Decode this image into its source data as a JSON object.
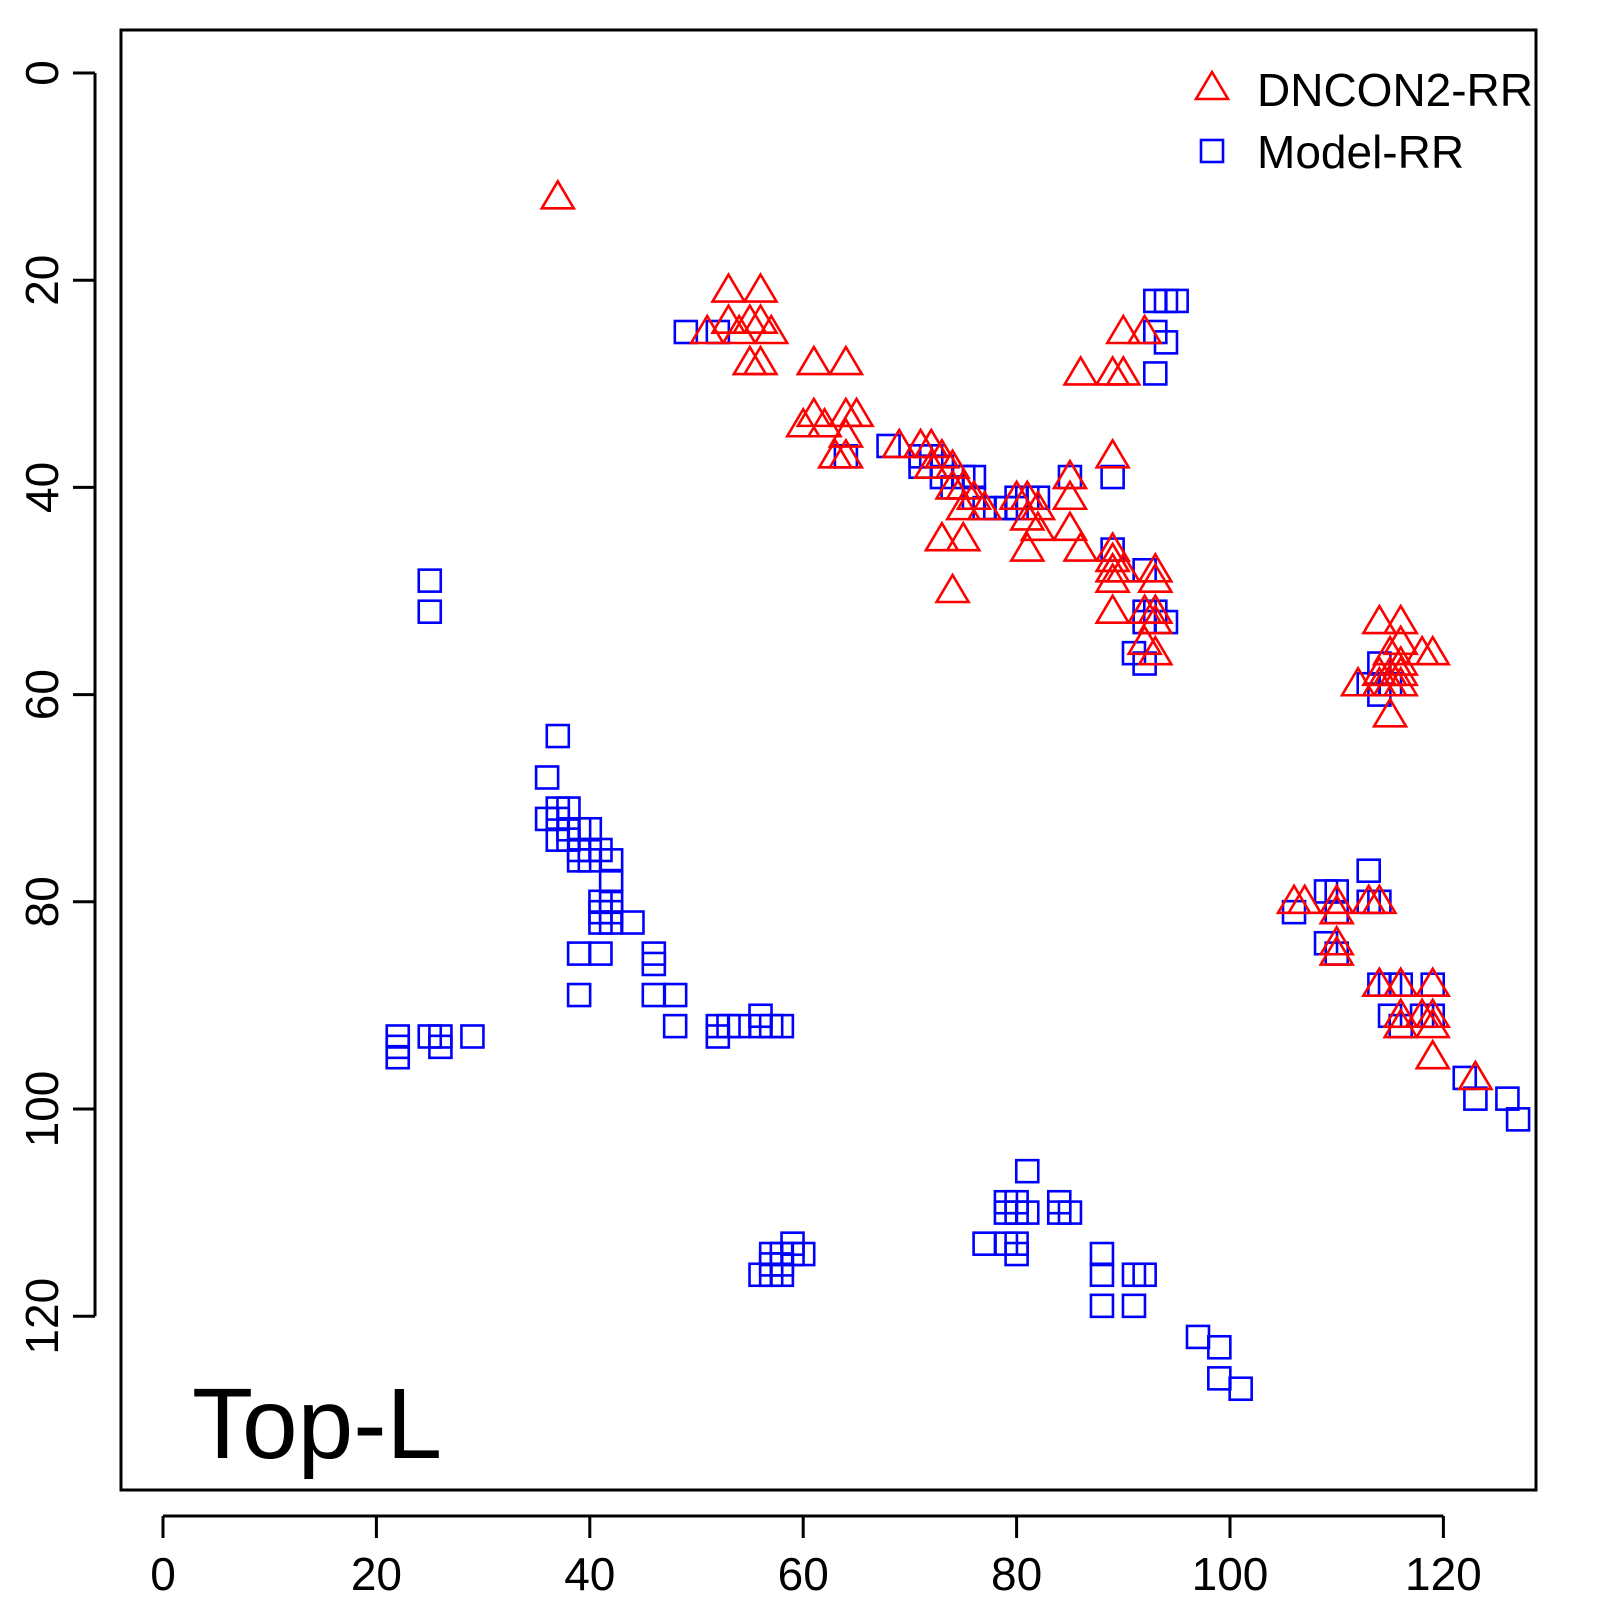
{
  "chart_data": {
    "type": "scatter",
    "annotation": "Top-L",
    "xlim": [
      -10,
      133
    ],
    "ylim": [
      -4,
      133
    ],
    "y_reversed": true,
    "xticks": [
      "0",
      "20",
      "40",
      "60",
      "80",
      "100",
      "120"
    ],
    "yticks": [
      "0",
      "20",
      "40",
      "60",
      "80",
      "100",
      "120"
    ],
    "legend_position": "top-right",
    "grid": false,
    "series": [
      {
        "name": "DNCON2-RR",
        "marker": "triangle",
        "color": "#ff0000",
        "points": [
          [
            37,
            12
          ],
          [
            53,
            21
          ],
          [
            56,
            21
          ],
          [
            51,
            25
          ],
          [
            53,
            24
          ],
          [
            55,
            24
          ],
          [
            56,
            24
          ],
          [
            57,
            25
          ],
          [
            54,
            25
          ],
          [
            55,
            28
          ],
          [
            56,
            28
          ],
          [
            61,
            28
          ],
          [
            64,
            28
          ],
          [
            60,
            34
          ],
          [
            61,
            33
          ],
          [
            62,
            34
          ],
          [
            64,
            33
          ],
          [
            65,
            33
          ],
          [
            64,
            35
          ],
          [
            63,
            37
          ],
          [
            64,
            37
          ],
          [
            69,
            36
          ],
          [
            71,
            36
          ],
          [
            72,
            36
          ],
          [
            73,
            37
          ],
          [
            72,
            38
          ],
          [
            74,
            38
          ],
          [
            74,
            40
          ],
          [
            75,
            40
          ],
          [
            76,
            41
          ],
          [
            75,
            42
          ],
          [
            77,
            42
          ],
          [
            73,
            45
          ],
          [
            75,
            45
          ],
          [
            74,
            50
          ],
          [
            80,
            41
          ],
          [
            81,
            41
          ],
          [
            82,
            42
          ],
          [
            81,
            43
          ],
          [
            82,
            44
          ],
          [
            81,
            46
          ],
          [
            85,
            39
          ],
          [
            85,
            41
          ],
          [
            85,
            44
          ],
          [
            86,
            46
          ],
          [
            86,
            29
          ],
          [
            89,
            29
          ],
          [
            90,
            29
          ],
          [
            90,
            25
          ],
          [
            92,
            25
          ],
          [
            89,
            37
          ],
          [
            89,
            46
          ],
          [
            89,
            47
          ],
          [
            89,
            48
          ],
          [
            90,
            48
          ],
          [
            89,
            49
          ],
          [
            89,
            52
          ],
          [
            93,
            48
          ],
          [
            93,
            49
          ],
          [
            92,
            52
          ],
          [
            93,
            52
          ],
          [
            93,
            53
          ],
          [
            92,
            55
          ],
          [
            93,
            56
          ],
          [
            114,
            53
          ],
          [
            116,
            53
          ],
          [
            116,
            55
          ],
          [
            118,
            56
          ],
          [
            119,
            56
          ],
          [
            115,
            56
          ],
          [
            116,
            57
          ],
          [
            114,
            58
          ],
          [
            115,
            58
          ],
          [
            116,
            58
          ],
          [
            112,
            59
          ],
          [
            114,
            59
          ],
          [
            115,
            59
          ],
          [
            116,
            59
          ],
          [
            115,
            62
          ],
          [
            106,
            80
          ],
          [
            107,
            80
          ],
          [
            110,
            80
          ],
          [
            110,
            81
          ],
          [
            113,
            80
          ],
          [
            114,
            80
          ],
          [
            110,
            84
          ],
          [
            110,
            85
          ],
          [
            114,
            88
          ],
          [
            116,
            88
          ],
          [
            119,
            88
          ],
          [
            116,
            91
          ],
          [
            116,
            92
          ],
          [
            118,
            91
          ],
          [
            119,
            91
          ],
          [
            119,
            92
          ],
          [
            119,
            95
          ],
          [
            123,
            97
          ]
        ]
      },
      {
        "name": "Model-RR",
        "marker": "square",
        "color": "#0000ff",
        "points": [
          [
            49,
            25
          ],
          [
            52,
            25
          ],
          [
            93,
            22
          ],
          [
            94,
            22
          ],
          [
            95,
            22
          ],
          [
            93,
            25
          ],
          [
            94,
            26
          ],
          [
            93,
            29
          ],
          [
            64,
            37
          ],
          [
            68,
            36
          ],
          [
            71,
            37
          ],
          [
            71,
            38
          ],
          [
            72,
            37
          ],
          [
            73,
            38
          ],
          [
            73,
            39
          ],
          [
            74,
            40
          ],
          [
            75,
            39
          ],
          [
            76,
            39
          ],
          [
            76,
            41
          ],
          [
            77,
            42
          ],
          [
            78,
            42
          ],
          [
            79,
            42
          ],
          [
            80,
            41
          ],
          [
            80,
            42
          ],
          [
            81,
            41
          ],
          [
            82,
            41
          ],
          [
            85,
            39
          ],
          [
            89,
            39
          ],
          [
            89,
            46
          ],
          [
            92,
            48
          ],
          [
            92,
            52
          ],
          [
            93,
            52
          ],
          [
            92,
            53
          ],
          [
            94,
            53
          ],
          [
            91,
            56
          ],
          [
            92,
            57
          ],
          [
            113,
            59
          ],
          [
            114,
            57
          ],
          [
            114,
            60
          ],
          [
            115,
            59
          ],
          [
            25,
            49
          ],
          [
            25,
            52
          ],
          [
            37,
            64
          ],
          [
            36,
            68
          ],
          [
            36,
            72
          ],
          [
            37,
            71
          ],
          [
            38,
            71
          ],
          [
            37,
            72
          ],
          [
            38,
            73
          ],
          [
            37,
            74
          ],
          [
            38,
            74
          ],
          [
            39,
            73
          ],
          [
            40,
            73
          ],
          [
            39,
            75
          ],
          [
            40,
            75
          ],
          [
            41,
            75
          ],
          [
            39,
            76
          ],
          [
            40,
            76
          ],
          [
            42,
            76
          ],
          [
            42,
            78
          ],
          [
            41,
            80
          ],
          [
            42,
            80
          ],
          [
            41,
            81
          ],
          [
            42,
            81
          ],
          [
            41,
            82
          ],
          [
            42,
            82
          ],
          [
            44,
            82
          ],
          [
            39,
            85
          ],
          [
            41,
            85
          ],
          [
            46,
            85
          ],
          [
            46,
            86
          ],
          [
            46,
            89
          ],
          [
            48,
            89
          ],
          [
            39,
            89
          ],
          [
            48,
            92
          ],
          [
            22,
            93
          ],
          [
            25,
            93
          ],
          [
            26,
            93
          ],
          [
            29,
            93
          ],
          [
            22,
            94
          ],
          [
            26,
            94
          ],
          [
            22,
            95
          ],
          [
            52,
            92
          ],
          [
            53,
            92
          ],
          [
            54,
            92
          ],
          [
            52,
            93
          ],
          [
            56,
            91
          ],
          [
            56,
            92
          ],
          [
            57,
            92
          ],
          [
            58,
            92
          ],
          [
            106,
            81
          ],
          [
            109,
            79
          ],
          [
            110,
            79
          ],
          [
            110,
            81
          ],
          [
            109,
            84
          ],
          [
            110,
            85
          ],
          [
            113,
            77
          ],
          [
            113,
            80
          ],
          [
            114,
            80
          ],
          [
            114,
            88
          ],
          [
            115,
            88
          ],
          [
            116,
            88
          ],
          [
            115,
            91
          ],
          [
            116,
            92
          ],
          [
            118,
            91
          ],
          [
            119,
            91
          ],
          [
            119,
            88
          ],
          [
            122,
            97
          ],
          [
            123,
            99
          ],
          [
            126,
            99
          ],
          [
            127,
            101
          ],
          [
            81,
            106
          ],
          [
            79,
            109
          ],
          [
            80,
            109
          ],
          [
            79,
            110
          ],
          [
            80,
            110
          ],
          [
            81,
            110
          ],
          [
            84,
            109
          ],
          [
            84,
            110
          ],
          [
            85,
            110
          ],
          [
            77,
            113
          ],
          [
            79,
            113
          ],
          [
            80,
            113
          ],
          [
            80,
            114
          ],
          [
            88,
            114
          ],
          [
            88,
            116
          ],
          [
            91,
            116
          ],
          [
            92,
            116
          ],
          [
            88,
            119
          ],
          [
            91,
            119
          ],
          [
            59,
            113
          ],
          [
            59,
            114
          ],
          [
            60,
            114
          ],
          [
            57,
            114
          ],
          [
            58,
            114
          ],
          [
            57,
            115
          ],
          [
            58,
            115
          ],
          [
            56,
            116
          ],
          [
            57,
            116
          ],
          [
            58,
            116
          ],
          [
            97,
            122
          ],
          [
            99,
            123
          ],
          [
            99,
            126
          ],
          [
            101,
            127
          ]
        ]
      }
    ]
  }
}
